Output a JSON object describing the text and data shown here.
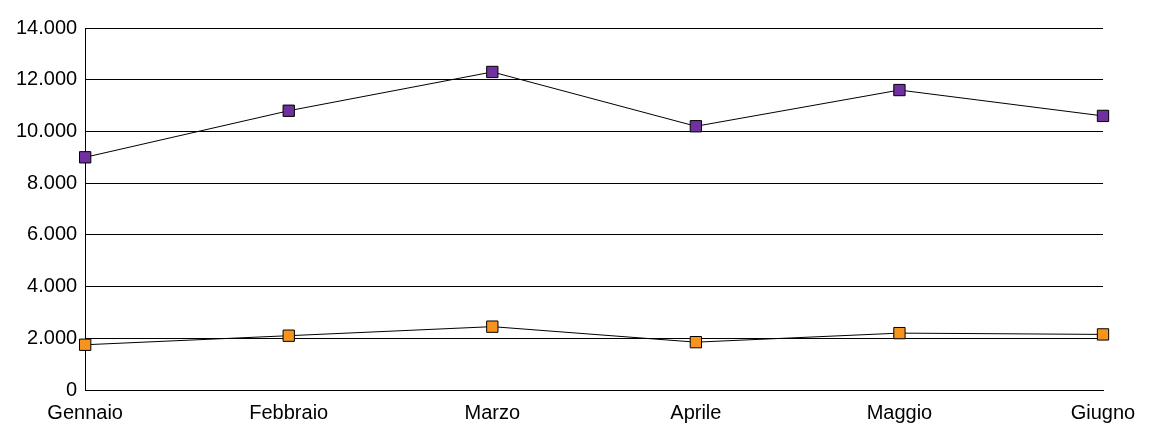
{
  "chart_data": {
    "type": "line",
    "categories": [
      "Gennaio",
      "Febbraio",
      "Marzo",
      "Aprile",
      "Maggio",
      "Giugno"
    ],
    "series": [
      {
        "color": "#7030a0",
        "values": [
          9000,
          10800,
          12300,
          10200,
          11600,
          10600
        ]
      },
      {
        "color": "#f7941d",
        "values": [
          1750,
          2100,
          2450,
          1850,
          2200,
          2150
        ]
      }
    ],
    "ylim": [
      0,
      14000
    ],
    "yticks": [
      {
        "value": 0,
        "label": "0"
      },
      {
        "value": 2000,
        "label": "2.000"
      },
      {
        "value": 4000,
        "label": "4.000"
      },
      {
        "value": 6000,
        "label": "6.000"
      },
      {
        "value": 8000,
        "label": "8.000"
      },
      {
        "value": 10000,
        "label": "10.000"
      },
      {
        "value": 12000,
        "label": "12.000"
      },
      {
        "value": 14000,
        "label": "14.000"
      }
    ],
    "grid": "y",
    "legend": false,
    "marker": "square",
    "line_style": "solid"
  }
}
